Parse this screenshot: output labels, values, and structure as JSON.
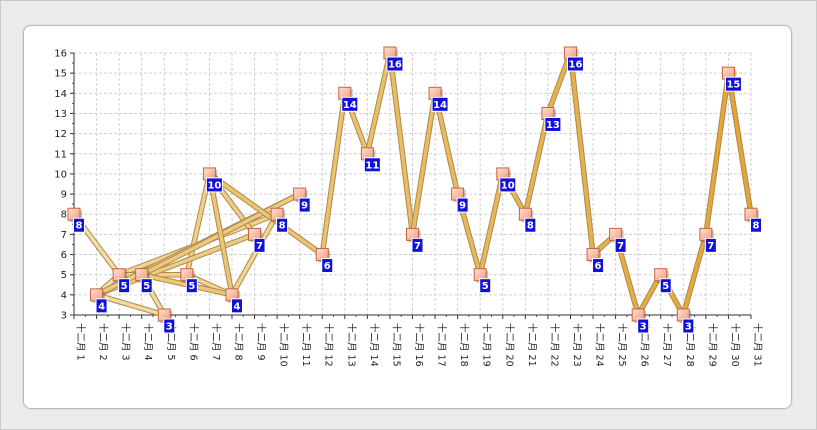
{
  "chart_data": {
    "type": "line",
    "title": "",
    "xlabel": "",
    "ylabel": "",
    "ylim": [
      3,
      16
    ],
    "y_ticks": [
      3,
      4,
      5,
      6,
      7,
      8,
      9,
      10,
      11,
      12,
      13,
      14,
      15,
      16
    ],
    "grid": true,
    "categories": [
      "十二月 1",
      "十二月 2",
      "十二月 3",
      "十二月 4",
      "十二月 5",
      "十二月 6",
      "十二月 7",
      "十二月 8",
      "十二月 9",
      "十二月 10",
      "十二月 11",
      "十二月 12",
      "十二月 13",
      "十二月 14",
      "十二月 15",
      "十二月 16",
      "十二月 17",
      "十二月 18",
      "十二月 19",
      "十二月 20",
      "十二月 21",
      "十二月 22",
      "十二月 23",
      "十二月 24",
      "十二月 25",
      "十二月 26",
      "十二月 27",
      "十二月 28",
      "十二月 29",
      "十二月 30",
      "十二月 31"
    ],
    "x_tick_top": "十二月",
    "x_tick_days": [
      "1",
      "2",
      "3",
      "4",
      "5",
      "6",
      "7",
      "8",
      "9",
      "10",
      "11",
      "12",
      "13",
      "14",
      "15",
      "16",
      "17",
      "18",
      "19",
      "20",
      "21",
      "22",
      "23",
      "24",
      "25",
      "26",
      "27",
      "28",
      "29",
      "30",
      "31"
    ],
    "line_sequence": [
      1,
      3,
      2,
      5,
      4,
      6,
      8,
      10,
      3,
      6,
      7,
      9,
      2,
      11,
      4,
      8,
      7,
      12,
      13,
      14,
      15,
      16,
      17,
      18,
      19,
      20,
      21,
      22,
      23,
      24,
      25,
      26,
      27,
      28,
      29,
      30,
      31
    ],
    "series": [
      {
        "x": [
          1,
          2,
          3,
          4,
          5,
          6,
          7,
          8,
          9,
          10,
          11,
          12,
          13,
          14,
          15,
          16,
          17,
          18,
          19,
          20,
          21,
          22,
          23,
          24,
          25,
          26,
          27,
          28,
          29,
          30,
          31
        ],
        "values": [
          8,
          4,
          5,
          5,
          3,
          5,
          10,
          4,
          7,
          8,
          9,
          6,
          14,
          11,
          16,
          7,
          14,
          9,
          5,
          10,
          8,
          13,
          16,
          6,
          7,
          3,
          5,
          3,
          7,
          15,
          8
        ]
      }
    ],
    "colors": {
      "line_light": "#f5dda6",
      "line_dark": "#e3a535",
      "line_edge": "#a98c50",
      "marker_fill": "#f7b9a0",
      "marker_border": "#c9633f",
      "label_bg": "#1010dd",
      "label_text": "#ffffff",
      "grid": "#d0d0d0"
    }
  }
}
